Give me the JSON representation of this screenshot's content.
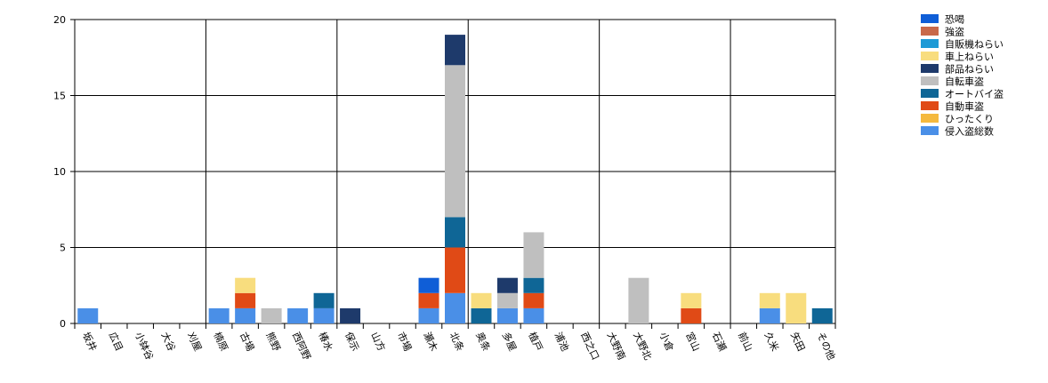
{
  "chart_data": {
    "type": "bar",
    "stacked": true,
    "title": "",
    "xlabel": "",
    "ylabel": "",
    "ylim": [
      0,
      20
    ],
    "yticks": [
      "0",
      "5",
      "10",
      "15",
      "20"
    ],
    "grid": true,
    "legend_position": "top-right",
    "categories": [
      "坂井",
      "広目",
      "小鉢谷",
      "大谷",
      "刈屋",
      "楠原",
      "古場",
      "熊野",
      "西阿野",
      "椿水",
      "保示",
      "山方",
      "市場",
      "瀬木",
      "北条",
      "奥条",
      "多屋",
      "植戸",
      "浦池",
      "西之口",
      "大野南",
      "大野北",
      "小倉",
      "宮山",
      "石瀬",
      "前山",
      "久米",
      "矢田",
      "その他"
    ],
    "series": [
      {
        "name": "侵入盗総数",
        "color": "#4a8fe7",
        "values": [
          1,
          0,
          0,
          0,
          0,
          1,
          1,
          0,
          1,
          1,
          0,
          0,
          0,
          1,
          2,
          0,
          1,
          1,
          0,
          0,
          0,
          0,
          0,
          0,
          0,
          0,
          1,
          0,
          0
        ]
      },
      {
        "name": "ひったくり",
        "color": "#f5b93e",
        "values": [
          0,
          0,
          0,
          0,
          0,
          0,
          0,
          0,
          0,
          0,
          0,
          0,
          0,
          0,
          0,
          0,
          0,
          0,
          0,
          0,
          0,
          0,
          0,
          0,
          0,
          0,
          0,
          0,
          0
        ]
      },
      {
        "name": "自動車盗",
        "color": "#e04a16",
        "values": [
          0,
          0,
          0,
          0,
          0,
          0,
          1,
          0,
          0,
          0,
          0,
          0,
          0,
          1,
          3,
          0,
          0,
          1,
          0,
          0,
          0,
          0,
          0,
          1,
          0,
          0,
          0,
          0,
          0
        ]
      },
      {
        "name": "オートバイ盗",
        "color": "#0f6696",
        "values": [
          0,
          0,
          0,
          0,
          0,
          0,
          0,
          0,
          0,
          1,
          0,
          0,
          0,
          0,
          2,
          1,
          0,
          1,
          0,
          0,
          0,
          0,
          0,
          0,
          0,
          0,
          0,
          0,
          1
        ]
      },
      {
        "name": "自転車盗",
        "color": "#bfbfbf",
        "values": [
          0,
          0,
          0,
          0,
          0,
          0,
          0,
          1,
          0,
          0,
          0,
          0,
          0,
          0,
          10,
          0,
          1,
          3,
          0,
          0,
          0,
          3,
          0,
          0,
          0,
          0,
          0,
          0,
          0
        ]
      },
      {
        "name": "部品ねらい",
        "color": "#1e3a6b",
        "values": [
          0,
          0,
          0,
          0,
          0,
          0,
          0,
          0,
          0,
          0,
          1,
          0,
          0,
          0,
          2,
          0,
          1,
          0,
          0,
          0,
          0,
          0,
          0,
          0,
          0,
          0,
          0,
          0,
          0
        ]
      },
      {
        "name": "車上ねらい",
        "color": "#f8dd7e",
        "values": [
          0,
          0,
          0,
          0,
          0,
          0,
          1,
          0,
          0,
          0,
          0,
          0,
          0,
          0,
          0,
          1,
          0,
          0,
          0,
          0,
          0,
          0,
          0,
          1,
          0,
          0,
          1,
          2,
          0
        ]
      },
      {
        "name": "自販機ねらい",
        "color": "#1e9ad6",
        "values": [
          0,
          0,
          0,
          0,
          0,
          0,
          0,
          0,
          0,
          0,
          0,
          0,
          0,
          0,
          0,
          0,
          0,
          0,
          0,
          0,
          0,
          0,
          0,
          0,
          0,
          0,
          0,
          0,
          0
        ]
      },
      {
        "name": "強盗",
        "color": "#c8694a",
        "values": [
          0,
          0,
          0,
          0,
          0,
          0,
          0,
          0,
          0,
          0,
          0,
          0,
          0,
          0,
          0,
          0,
          0,
          0,
          0,
          0,
          0,
          0,
          0,
          0,
          0,
          0,
          0,
          0,
          0
        ]
      },
      {
        "name": "恐喝",
        "color": "#0f5ed7",
        "values": [
          0,
          0,
          0,
          0,
          0,
          0,
          0,
          0,
          0,
          0,
          0,
          0,
          0,
          1,
          0,
          0,
          0,
          0,
          0,
          0,
          0,
          0,
          0,
          0,
          0,
          0,
          0,
          0,
          0
        ]
      }
    ]
  }
}
